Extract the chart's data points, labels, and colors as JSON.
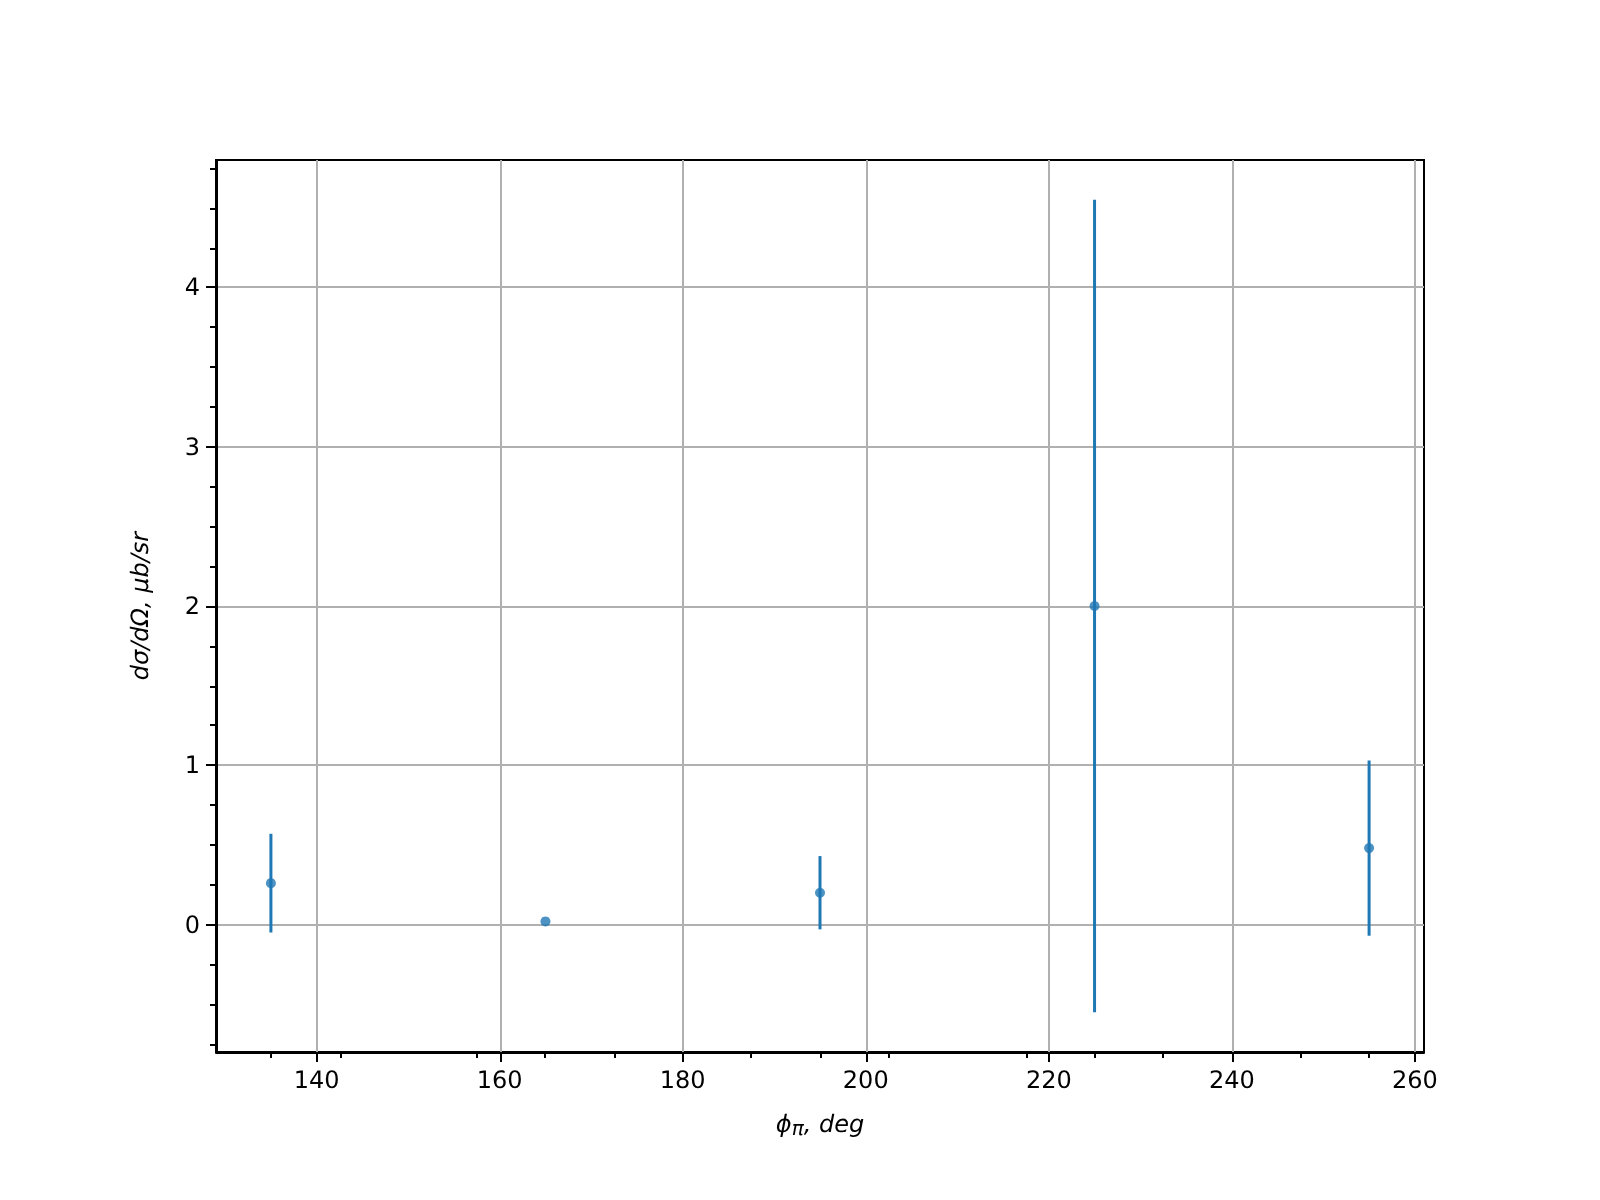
{
  "chart_data": {
    "type": "scatter",
    "xlabel": "ϕ$_{π}$, deg",
    "ylabel": "dσ/dΩ, μb/sr",
    "x": [
      135,
      165,
      195,
      225,
      255
    ],
    "series": [
      {
        "color": "#1f77b4",
        "values": [
          0.26,
          0.02,
          0.2,
          2.0,
          0.48
        ],
        "errors": [
          0.31,
          null,
          0.23,
          2.55,
          0.55
        ]
      }
    ],
    "xlim": [
      129,
      261
    ],
    "xticks": [
      140,
      160,
      180,
      200,
      220,
      240,
      260
    ],
    "ylim": [
      -0.8,
      4.8
    ],
    "yticks": [
      0,
      1,
      2,
      3,
      4
    ],
    "grid": true,
    "marker": "circle"
  }
}
